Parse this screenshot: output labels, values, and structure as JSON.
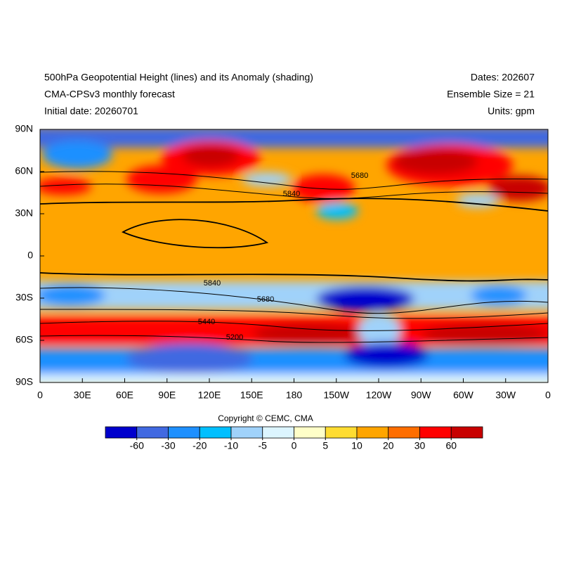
{
  "header": {
    "title": "500hPa Geopotential Height (lines) and its Anomaly (shading)",
    "subtitle": "CMA-CPSv3 monthly forecast",
    "initial_date": "Initial date: 20260701",
    "dates": "Dates: 202607",
    "ensemble": "Ensemble Size = 21",
    "units": "Units: gpm"
  },
  "map": {
    "lat_labels": [
      "90N",
      "60N",
      "30N",
      "0",
      "30S",
      "60S",
      "90S"
    ],
    "lon_labels": [
      "0",
      "30E",
      "60E",
      "90E",
      "120E",
      "150E",
      "180",
      "150W",
      "120W",
      "90W",
      "60W",
      "30W",
      "0"
    ],
    "contour_labels": [
      "5680",
      "5840",
      "5840",
      "5680",
      "5440",
      "5200"
    ]
  },
  "copyright": "Copyright © CEMC, CMA",
  "colorbar": {
    "colors": [
      "#0000cd",
      "#4169e1",
      "#1e90ff",
      "#00bfff",
      "#a0d2fa",
      "#dcf5ff",
      "#ffffc8",
      "#ffdc32",
      "#ffa500",
      "#ff6e00",
      "#ff0000",
      "#c80000"
    ],
    "labels": [
      -60,
      -30,
      -20,
      -10,
      -5,
      0,
      5,
      10,
      20,
      30,
      60
    ]
  }
}
